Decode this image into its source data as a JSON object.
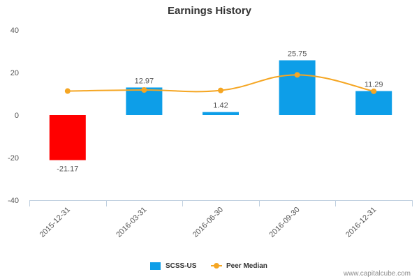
{
  "chart_data": {
    "type": "bar",
    "title": "Earnings History",
    "categories": [
      "2015-12-31",
      "2016-03-31",
      "2016-06-30",
      "2016-09-30",
      "2016-12-31"
    ],
    "series": [
      {
        "name": "SCSS-US",
        "type": "bar",
        "values": [
          -21.17,
          12.97,
          1.42,
          25.75,
          11.29
        ],
        "labels": [
          "-21.17",
          "12.97",
          "1.42",
          "25.75",
          "11.29"
        ],
        "color": "#0d9ee8",
        "negative_color": "#ff0000"
      },
      {
        "name": "Peer Median",
        "type": "line",
        "values": [
          11.3,
          11.8,
          11.6,
          18.9,
          11.2
        ],
        "color": "#f5a623"
      }
    ],
    "ylim": [
      -40,
      40
    ],
    "yticks": [
      -40,
      -20,
      0,
      20,
      40
    ],
    "grid": false,
    "legend_position": "bottom-center"
  },
  "credit": "www.capitalcube.com"
}
